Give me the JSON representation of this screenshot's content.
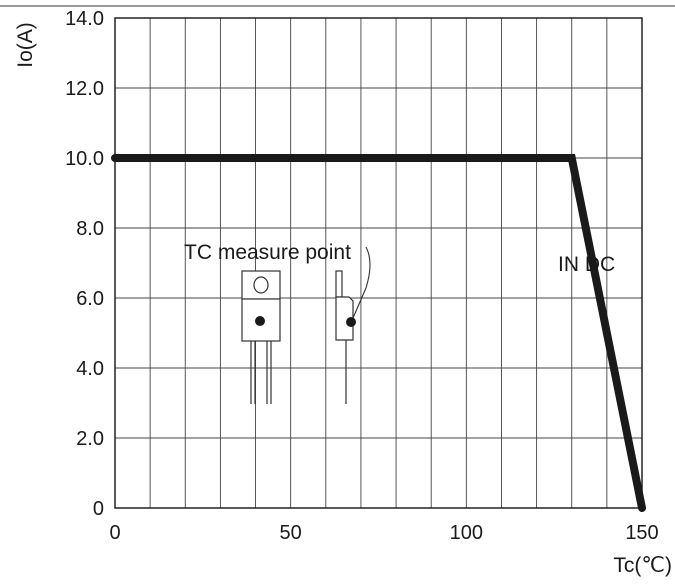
{
  "chart_data": {
    "type": "line",
    "title": "",
    "xlabel": "Tc(℃)",
    "ylabel": "Io(A)",
    "xlim": [
      0,
      150
    ],
    "ylim": [
      0,
      14
    ],
    "x_ticks": [
      "0",
      "50",
      "100",
      "150"
    ],
    "y_ticks": [
      "0",
      "2.0",
      "4.0",
      "6.0",
      "8.0",
      "10.0",
      "12.0",
      "14.0"
    ],
    "grid": true,
    "series": [
      {
        "x": [
          0,
          130,
          150
        ],
        "y": [
          10,
          10,
          0
        ]
      }
    ],
    "annotations": {
      "measure_point": "TC measure point",
      "curve_label": "IN DC"
    }
  }
}
